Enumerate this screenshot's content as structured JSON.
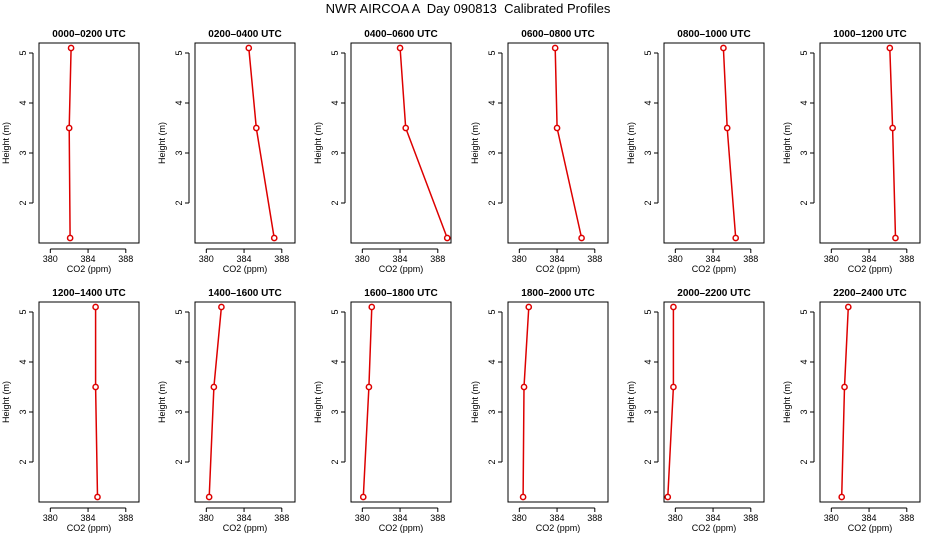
{
  "chart_data": {
    "type": "line",
    "title": "NWR AIRCOA A  Day 090813  Calibrated Profiles",
    "xlabel": "CO2 (ppm)",
    "ylabel": "Height (m)",
    "xlim": [
      378.8,
      389.4
    ],
    "ylim": [
      1.2,
      5.2
    ],
    "xticks": [
      "380",
      "384",
      "388"
    ],
    "xtick_values": [
      380,
      384,
      388
    ],
    "yticks": [
      "2",
      "3",
      "4",
      "5"
    ],
    "ytick_values": [
      2,
      3,
      4,
      5
    ],
    "line_color": "#dd0000",
    "panels": [
      {
        "title": "0000–0200 UTC",
        "points": [
          {
            "x": 382.2,
            "y": 5.1
          },
          {
            "x": 382.0,
            "y": 3.5
          },
          {
            "x": 382.1,
            "y": 1.3
          }
        ]
      },
      {
        "title": "0200–0400 UTC",
        "points": [
          {
            "x": 384.5,
            "y": 5.1
          },
          {
            "x": 385.3,
            "y": 3.5
          },
          {
            "x": 387.2,
            "y": 1.3
          }
        ]
      },
      {
        "title": "0400–0600 UTC",
        "points": [
          {
            "x": 384.0,
            "y": 5.1
          },
          {
            "x": 384.6,
            "y": 3.5
          },
          {
            "x": 389.0,
            "y": 1.3
          }
        ]
      },
      {
        "title": "0600–0800 UTC",
        "points": [
          {
            "x": 383.8,
            "y": 5.1
          },
          {
            "x": 384.0,
            "y": 3.5
          },
          {
            "x": 386.6,
            "y": 1.3
          }
        ]
      },
      {
        "title": "0800–1000 UTC",
        "points": [
          {
            "x": 385.1,
            "y": 5.1
          },
          {
            "x": 385.5,
            "y": 3.5
          },
          {
            "x": 386.4,
            "y": 1.3
          }
        ]
      },
      {
        "title": "1000–1200 UTC",
        "points": [
          {
            "x": 386.2,
            "y": 5.1
          },
          {
            "x": 386.5,
            "y": 3.5
          },
          {
            "x": 386.8,
            "y": 1.3
          }
        ]
      },
      {
        "title": "1200–1400 UTC",
        "points": [
          {
            "x": 384.8,
            "y": 5.1
          },
          {
            "x": 384.8,
            "y": 3.5
          },
          {
            "x": 385.0,
            "y": 1.3
          }
        ]
      },
      {
        "title": "1400–1600 UTC",
        "points": [
          {
            "x": 381.6,
            "y": 5.1
          },
          {
            "x": 380.8,
            "y": 3.5
          },
          {
            "x": 380.3,
            "y": 1.3
          }
        ]
      },
      {
        "title": "1600–1800 UTC",
        "points": [
          {
            "x": 381.0,
            "y": 5.1
          },
          {
            "x": 380.7,
            "y": 3.5
          },
          {
            "x": 380.1,
            "y": 1.3
          }
        ]
      },
      {
        "title": "1800–2000 UTC",
        "points": [
          {
            "x": 381.0,
            "y": 5.1
          },
          {
            "x": 380.5,
            "y": 3.5
          },
          {
            "x": 380.4,
            "y": 1.3
          }
        ]
      },
      {
        "title": "2000–2200 UTC",
        "points": [
          {
            "x": 379.8,
            "y": 5.1
          },
          {
            "x": 379.8,
            "y": 3.5
          },
          {
            "x": 379.2,
            "y": 1.3
          }
        ]
      },
      {
        "title": "2200–2400 UTC",
        "points": [
          {
            "x": 381.8,
            "y": 5.1
          },
          {
            "x": 381.4,
            "y": 3.5
          },
          {
            "x": 381.1,
            "y": 1.3
          }
        ]
      }
    ]
  }
}
